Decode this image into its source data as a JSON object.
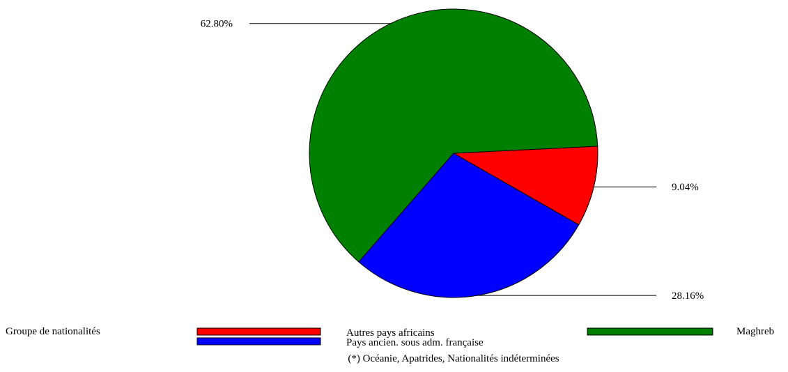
{
  "chart_data": {
    "type": "pie",
    "slices": [
      {
        "label": "Autres pays africains",
        "value": 9.04,
        "value_label": "9.04%",
        "color": "#ff0000"
      },
      {
        "label": "Pays ancien. sous adm. française",
        "value": 28.16,
        "value_label": "28.16%",
        "color": "#0000ff"
      },
      {
        "label": "Maghreb",
        "value": 62.8,
        "value_label": "62.80%",
        "color": "#008000"
      }
    ],
    "legend": {
      "title": "Groupe de nationalités",
      "placement": "bottom"
    },
    "footnote": "(*) Océanie, Apatrides, Nationalités indéterminées"
  }
}
